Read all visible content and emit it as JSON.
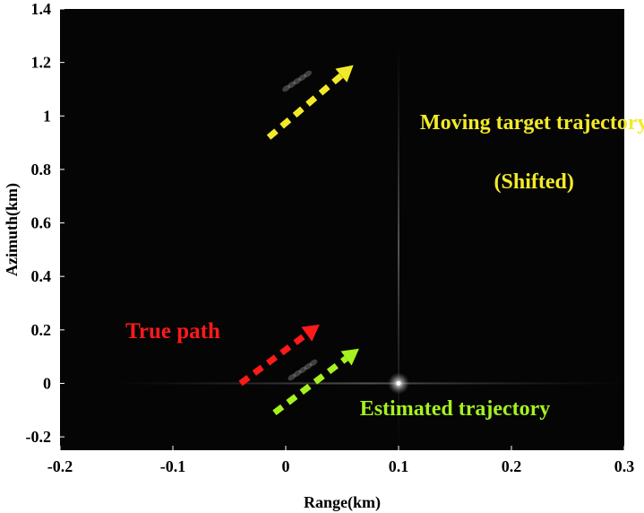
{
  "chart_data": {
    "type": "heatmap",
    "title": "",
    "xlabel": "Range(km)",
    "ylabel": "Azimuth(km)",
    "xlim": [
      -0.2,
      0.3
    ],
    "ylim": [
      -0.25,
      1.4
    ],
    "xticks": [
      "-0.2",
      "-0.1",
      "0",
      "0.1",
      "0.2",
      "0.3"
    ],
    "xtick_values": [
      -0.2,
      -0.1,
      0,
      0.1,
      0.2,
      0.3
    ],
    "yticks": [
      "1.4",
      "1.2",
      "1",
      "0.8",
      "0.6",
      "0.4",
      "0.2",
      "0",
      "-0.2"
    ],
    "ytick_values": [
      1.4,
      1.2,
      1.0,
      0.8,
      0.6,
      0.4,
      0.2,
      0,
      -0.2
    ],
    "background_color": "#050505",
    "bright_targets": [
      {
        "x": 0.1,
        "y": 0.0,
        "kind": "stationary point target"
      },
      {
        "x": 0.01,
        "y": 1.13,
        "kind": "moving target streak (shifted)"
      },
      {
        "x": 0.015,
        "y": 0.05,
        "kind": "moving target streak"
      }
    ],
    "annotations": [
      {
        "text": "Moving target trajectory",
        "color": "#f2ea28",
        "x": 0.22,
        "y": 0.95
      },
      {
        "text": "(Shifted)",
        "color": "#f2ea28",
        "x": 0.22,
        "y": 0.73
      },
      {
        "text": "True path",
        "color": "#ff1a1a",
        "x": -0.1,
        "y": 0.17
      },
      {
        "text": "Estimated trajectory",
        "color": "#a6f21f",
        "x": 0.15,
        "y": -0.12
      }
    ],
    "arrows": [
      {
        "name": "shifted",
        "color": "#f2ea28",
        "from": [
          -0.015,
          0.92
        ],
        "to": [
          0.06,
          1.19
        ]
      },
      {
        "name": "true",
        "color": "#ff1a1a",
        "from": [
          -0.04,
          0.0
        ],
        "to": [
          0.03,
          0.22
        ]
      },
      {
        "name": "estimated",
        "color": "#a6f21f",
        "from": [
          -0.01,
          -0.11
        ],
        "to": [
          0.065,
          0.13
        ]
      }
    ]
  }
}
